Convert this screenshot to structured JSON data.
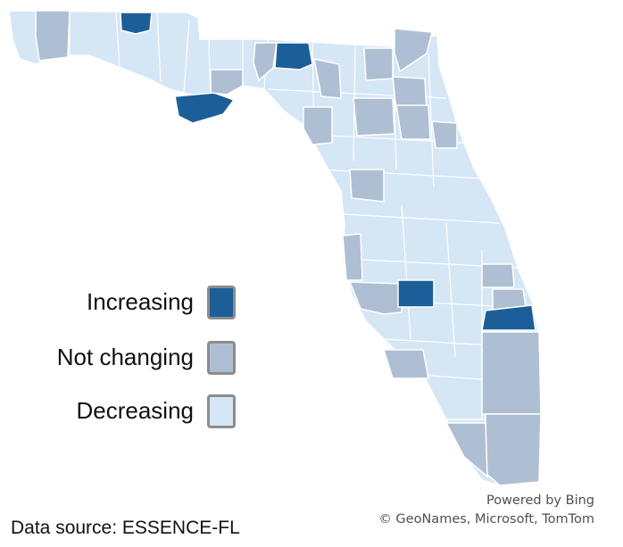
{
  "colors": {
    "increasing": "#1c5f98",
    "not_changing": "#aebfd3",
    "decreasing": "#d5e6f5",
    "border": "#ffffff"
  },
  "legend": {
    "items": [
      {
        "key": "increasing",
        "label": "Increasing"
      },
      {
        "key": "not_changing",
        "label": "Not changing"
      },
      {
        "key": "decreasing",
        "label": "Decreasing"
      }
    ]
  },
  "credit": {
    "line1": "Powered by Bing",
    "line2": "© GeoNames, Microsoft, TomTom"
  },
  "source": "Data source: ESSENCE-FL"
}
